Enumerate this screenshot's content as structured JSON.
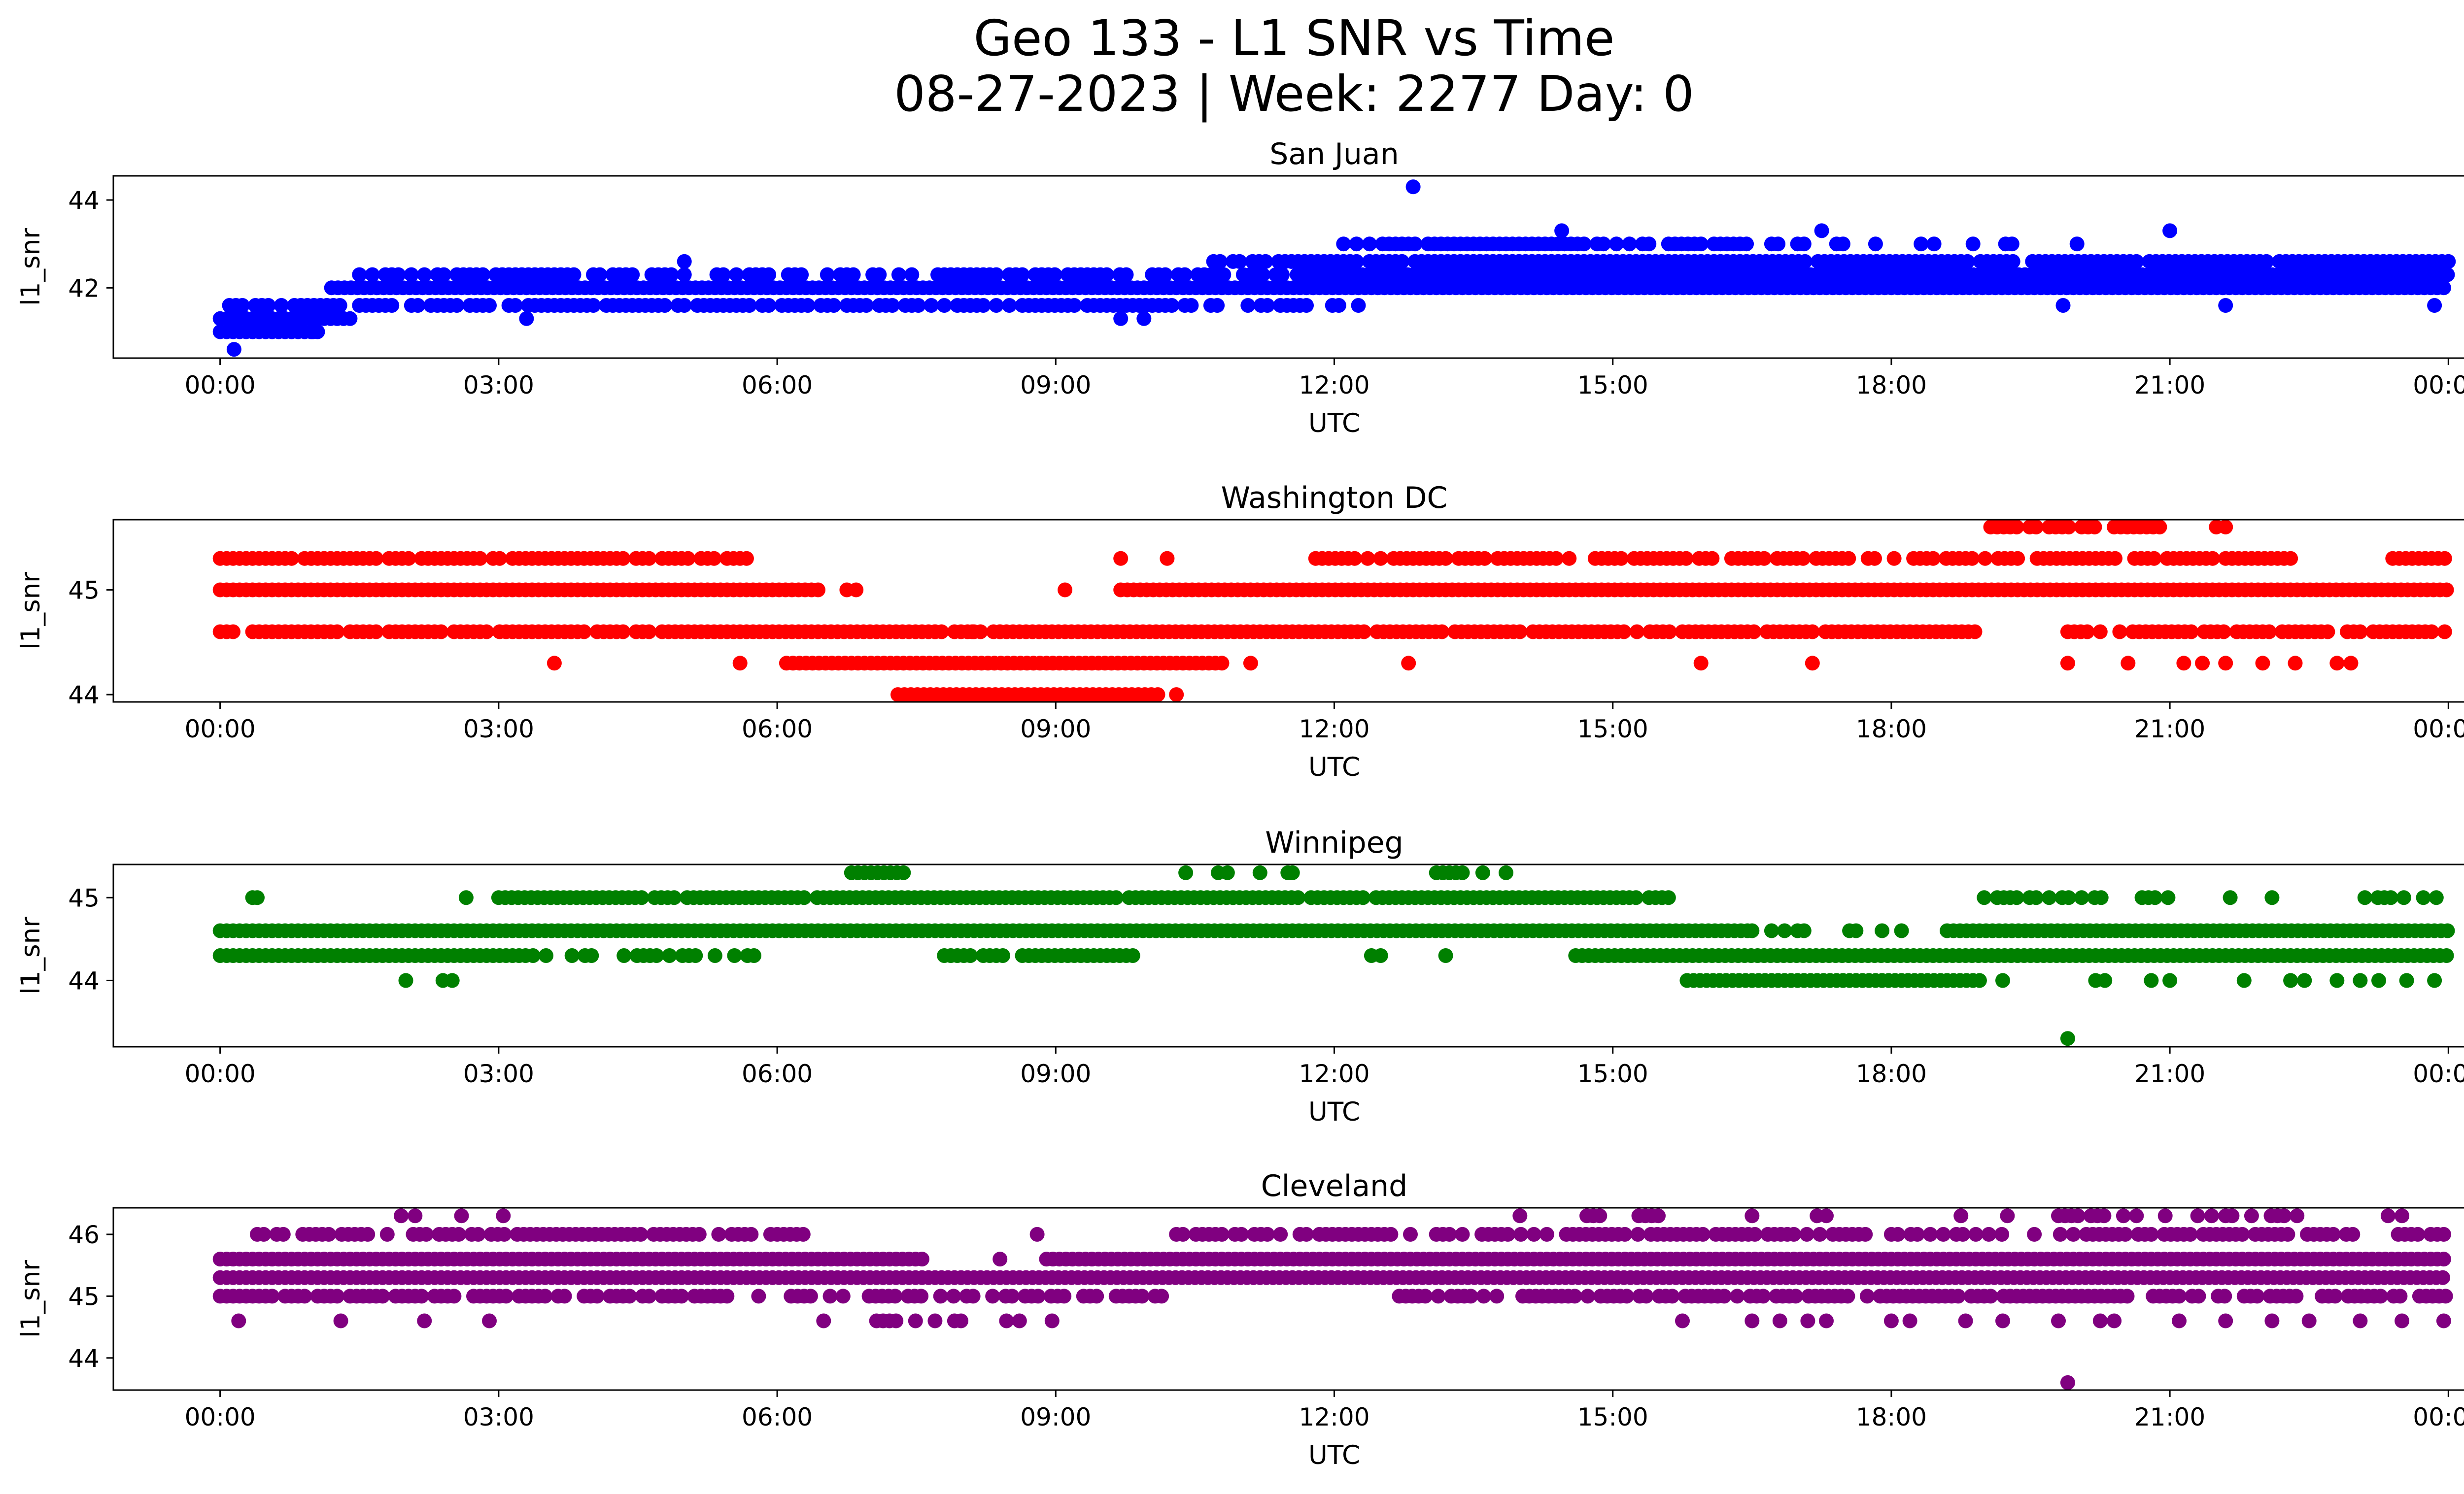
{
  "chart_data": {
    "type": "scatter",
    "title": "Geo 133 - L1 SNR vs Time",
    "subtitle": "08-27-2023 | Week: 2277 Day: 0",
    "x_tick_labels": [
      "00:00",
      "03:00",
      "06:00",
      "09:00",
      "12:00",
      "15:00",
      "18:00",
      "21:00",
      "00:00"
    ],
    "x_tick_hours": [
      0,
      3,
      6,
      9,
      12,
      15,
      18,
      21,
      24
    ],
    "xlim_hours": [
      -1.15,
      25.15
    ],
    "xlabel": "UTC",
    "ylabel": "l1_snr",
    "grid": false,
    "panels": [
      {
        "name": "San Juan",
        "color": "#0000ff",
        "ylim": [
          40.4,
          44.55
        ],
        "yticks": [
          42,
          44
        ],
        "bands": [
          {
            "y": 41.0,
            "start": 0.0,
            "end": 1.1,
            "density": 1.0
          },
          {
            "y": 41.3,
            "start": 0.0,
            "end": 1.4,
            "density": 1.0
          },
          {
            "y": 41.6,
            "start": 0.1,
            "end": 10.8,
            "density": 0.8
          },
          {
            "y": 41.6,
            "start": 11.0,
            "end": 12.3,
            "density": 0.4
          },
          {
            "y": 42.0,
            "start": 1.2,
            "end": 24.0,
            "density": 1.0
          },
          {
            "y": 42.3,
            "start": 1.5,
            "end": 11.5,
            "density": 0.7
          },
          {
            "y": 42.3,
            "start": 11.6,
            "end": 24.0,
            "density": 1.0
          },
          {
            "y": 42.6,
            "start": 10.7,
            "end": 24.0,
            "density": 0.95
          },
          {
            "y": 43.0,
            "start": 12.1,
            "end": 16.5,
            "density": 0.85
          },
          {
            "y": 43.0,
            "start": 16.5,
            "end": 20.0,
            "density": 0.35
          },
          {
            "y": 43.0,
            "start": 20.5,
            "end": 20.7,
            "density": 0.4
          }
        ],
        "points": [
          {
            "x": 0.15,
            "y": 40.6
          },
          {
            "x": 12.85,
            "y": 44.3
          },
          {
            "x": 14.45,
            "y": 43.3
          },
          {
            "x": 17.25,
            "y": 43.3
          },
          {
            "x": 21.0,
            "y": 43.3
          },
          {
            "x": 5.0,
            "y": 42.6
          },
          {
            "x": 3.3,
            "y": 41.3
          },
          {
            "x": 9.7,
            "y": 41.3
          },
          {
            "x": 9.95,
            "y": 41.3
          },
          {
            "x": 19.85,
            "y": 41.6
          },
          {
            "x": 23.85,
            "y": 41.6
          },
          {
            "x": 21.6,
            "y": 41.6
          },
          {
            "x": 1.0,
            "y": 41.0
          },
          {
            "x": 1.05,
            "y": 41.3
          }
        ]
      },
      {
        "name": "Washington DC",
        "color": "#ff0000",
        "ylim": [
          43.93,
          45.67
        ],
        "yticks": [
          44,
          45
        ],
        "bands": [
          {
            "y": 44.0,
            "start": 7.3,
            "end": 10.1,
            "density": 1.0
          },
          {
            "y": 44.3,
            "start": 6.1,
            "end": 10.8,
            "density": 1.0
          },
          {
            "y": 44.6,
            "start": 0.0,
            "end": 18.9,
            "density": 0.9
          },
          {
            "y": 44.6,
            "start": 19.9,
            "end": 24.0,
            "density": 0.9
          },
          {
            "y": 45.0,
            "start": 0.0,
            "end": 6.5,
            "density": 1.0
          },
          {
            "y": 45.0,
            "start": 9.7,
            "end": 24.0,
            "density": 1.0
          },
          {
            "y": 45.3,
            "start": 0.0,
            "end": 5.8,
            "density": 0.85
          },
          {
            "y": 45.3,
            "start": 11.8,
            "end": 22.4,
            "density": 0.8
          },
          {
            "y": 45.3,
            "start": 23.4,
            "end": 24.0,
            "density": 1.0
          },
          {
            "y": 45.6,
            "start": 19.0,
            "end": 20.9,
            "density": 0.8
          }
        ],
        "points": [
          {
            "x": 3.6,
            "y": 44.3
          },
          {
            "x": 5.6,
            "y": 44.3
          },
          {
            "x": 11.1,
            "y": 44.3
          },
          {
            "x": 12.8,
            "y": 44.3
          },
          {
            "x": 15.95,
            "y": 44.3
          },
          {
            "x": 17.15,
            "y": 44.3
          },
          {
            "x": 19.9,
            "y": 44.3
          },
          {
            "x": 20.55,
            "y": 44.3
          },
          {
            "x": 21.15,
            "y": 44.3
          },
          {
            "x": 21.35,
            "y": 44.3
          },
          {
            "x": 21.6,
            "y": 44.3
          },
          {
            "x": 22.0,
            "y": 44.3
          },
          {
            "x": 22.35,
            "y": 44.3
          },
          {
            "x": 22.8,
            "y": 44.3
          },
          {
            "x": 22.95,
            "y": 44.3
          },
          {
            "x": 6.75,
            "y": 45.0
          },
          {
            "x": 6.85,
            "y": 45.0
          },
          {
            "x": 9.1,
            "y": 45.0
          },
          {
            "x": 9.7,
            "y": 45.3
          },
          {
            "x": 10.2,
            "y": 45.3
          },
          {
            "x": 10.3,
            "y": 44.0
          },
          {
            "x": 21.5,
            "y": 45.6
          },
          {
            "x": 21.6,
            "y": 45.6
          },
          {
            "x": 7.7,
            "y": 44.6
          },
          {
            "x": 8.1,
            "y": 44.6
          },
          {
            "x": 8.4,
            "y": 44.6
          }
        ]
      },
      {
        "name": "Winnipeg",
        "color": "#008000",
        "ylim": [
          43.2,
          45.4
        ],
        "yticks": [
          44,
          45
        ],
        "bands": [
          {
            "y": 44.3,
            "start": 0.0,
            "end": 3.3,
            "density": 1.0
          },
          {
            "y": 44.3,
            "start": 3.3,
            "end": 5.8,
            "density": 0.45
          },
          {
            "y": 44.3,
            "start": 7.8,
            "end": 9.9,
            "density": 0.8
          },
          {
            "y": 44.3,
            "start": 14.6,
            "end": 24.0,
            "density": 1.0
          },
          {
            "y": 44.6,
            "start": 0.0,
            "end": 16.5,
            "density": 1.0
          },
          {
            "y": 44.6,
            "start": 16.5,
            "end": 18.6,
            "density": 0.3
          },
          {
            "y": 44.6,
            "start": 18.6,
            "end": 24.0,
            "density": 1.0
          },
          {
            "y": 45.0,
            "start": 3.0,
            "end": 15.6,
            "density": 0.95
          },
          {
            "y": 45.0,
            "start": 19.0,
            "end": 20.3,
            "density": 0.6
          },
          {
            "y": 45.0,
            "start": 20.7,
            "end": 21.0,
            "density": 0.8
          },
          {
            "y": 45.0,
            "start": 23.1,
            "end": 24.0,
            "density": 0.7
          },
          {
            "y": 44.0,
            "start": 15.8,
            "end": 19.0,
            "density": 1.0
          },
          {
            "y": 45.3,
            "start": 6.8,
            "end": 7.4,
            "density": 1.0
          },
          {
            "y": 45.3,
            "start": 13.1,
            "end": 13.4,
            "density": 1.0
          }
        ],
        "points": [
          {
            "x": 0.35,
            "y": 45.0
          },
          {
            "x": 0.4,
            "y": 45.0
          },
          {
            "x": 2.65,
            "y": 45.0
          },
          {
            "x": 2.0,
            "y": 44.0
          },
          {
            "x": 2.4,
            "y": 44.0
          },
          {
            "x": 2.5,
            "y": 44.0
          },
          {
            "x": 19.9,
            "y": 43.3
          },
          {
            "x": 12.4,
            "y": 44.3
          },
          {
            "x": 12.5,
            "y": 44.3
          },
          {
            "x": 13.2,
            "y": 44.3
          },
          {
            "x": 10.4,
            "y": 45.3
          },
          {
            "x": 10.75,
            "y": 45.3
          },
          {
            "x": 10.85,
            "y": 45.3
          },
          {
            "x": 11.2,
            "y": 45.3
          },
          {
            "x": 11.5,
            "y": 45.3
          },
          {
            "x": 11.55,
            "y": 45.3
          },
          {
            "x": 13.6,
            "y": 45.3
          },
          {
            "x": 13.85,
            "y": 45.3
          },
          {
            "x": 21.65,
            "y": 45.0
          },
          {
            "x": 22.1,
            "y": 45.0
          },
          {
            "x": 19.2,
            "y": 44.0
          },
          {
            "x": 20.2,
            "y": 44.0
          },
          {
            "x": 20.3,
            "y": 44.0
          },
          {
            "x": 20.8,
            "y": 44.0
          },
          {
            "x": 21.0,
            "y": 44.0
          },
          {
            "x": 21.8,
            "y": 44.0
          },
          {
            "x": 22.3,
            "y": 44.0
          },
          {
            "x": 22.45,
            "y": 44.0
          },
          {
            "x": 22.8,
            "y": 44.0
          },
          {
            "x": 23.05,
            "y": 44.0
          },
          {
            "x": 23.25,
            "y": 44.0
          },
          {
            "x": 23.55,
            "y": 44.0
          },
          {
            "x": 23.85,
            "y": 44.0
          }
        ]
      },
      {
        "name": "Cleveland",
        "color": "#800080",
        "ylim": [
          43.48,
          46.43
        ],
        "yticks": [
          44,
          45,
          46
        ],
        "bands": [
          {
            "y": 45.0,
            "start": 0.0,
            "end": 5.5,
            "density": 0.8
          },
          {
            "y": 45.0,
            "start": 5.8,
            "end": 10.2,
            "density": 0.6
          },
          {
            "y": 45.0,
            "start": 12.7,
            "end": 24.0,
            "density": 0.75
          },
          {
            "y": 45.3,
            "start": 0.0,
            "end": 24.0,
            "density": 1.0
          },
          {
            "y": 45.6,
            "start": 0.0,
            "end": 7.6,
            "density": 1.0
          },
          {
            "y": 45.6,
            "start": 8.9,
            "end": 24.0,
            "density": 1.0
          },
          {
            "y": 46.0,
            "start": 0.4,
            "end": 6.4,
            "density": 0.8
          },
          {
            "y": 46.0,
            "start": 10.3,
            "end": 24.0,
            "density": 0.7
          },
          {
            "y": 46.3,
            "start": 14.3,
            "end": 15.7,
            "density": 0.4
          },
          {
            "y": 46.3,
            "start": 19.8,
            "end": 20.7,
            "density": 0.5
          },
          {
            "y": 46.3,
            "start": 21.6,
            "end": 22.5,
            "density": 0.4
          },
          {
            "y": 44.6,
            "start": 7.0,
            "end": 9.0,
            "density": 0.45
          }
        ],
        "points": [
          {
            "x": 0.2,
            "y": 44.6
          },
          {
            "x": 1.3,
            "y": 44.6
          },
          {
            "x": 2.2,
            "y": 44.6
          },
          {
            "x": 2.9,
            "y": 44.6
          },
          {
            "x": 6.5,
            "y": 44.6
          },
          {
            "x": 15.75,
            "y": 44.6
          },
          {
            "x": 16.5,
            "y": 44.6
          },
          {
            "x": 16.8,
            "y": 44.6
          },
          {
            "x": 17.1,
            "y": 44.6
          },
          {
            "x": 17.3,
            "y": 44.6
          },
          {
            "x": 18.0,
            "y": 44.6
          },
          {
            "x": 18.2,
            "y": 44.6
          },
          {
            "x": 18.8,
            "y": 44.6
          },
          {
            "x": 19.2,
            "y": 44.6
          },
          {
            "x": 19.8,
            "y": 44.6
          },
          {
            "x": 20.25,
            "y": 44.6
          },
          {
            "x": 20.4,
            "y": 44.6
          },
          {
            "x": 21.1,
            "y": 44.6
          },
          {
            "x": 21.6,
            "y": 44.6
          },
          {
            "x": 22.1,
            "y": 44.6
          },
          {
            "x": 22.5,
            "y": 44.6
          },
          {
            "x": 23.05,
            "y": 44.6
          },
          {
            "x": 23.5,
            "y": 44.6
          },
          {
            "x": 23.95,
            "y": 44.6
          },
          {
            "x": 19.9,
            "y": 43.6
          },
          {
            "x": 1.95,
            "y": 46.3
          },
          {
            "x": 2.1,
            "y": 46.3
          },
          {
            "x": 2.6,
            "y": 46.3
          },
          {
            "x": 3.05,
            "y": 46.3
          },
          {
            "x": 14.0,
            "y": 46.3
          },
          {
            "x": 16.5,
            "y": 46.3
          },
          {
            "x": 17.2,
            "y": 46.3
          },
          {
            "x": 17.3,
            "y": 46.3
          },
          {
            "x": 18.75,
            "y": 46.3
          },
          {
            "x": 19.25,
            "y": 46.3
          },
          {
            "x": 20.95,
            "y": 46.3
          },
          {
            "x": 21.3,
            "y": 46.3
          },
          {
            "x": 21.45,
            "y": 46.3
          },
          {
            "x": 23.35,
            "y": 46.3
          },
          {
            "x": 23.5,
            "y": 46.3
          },
          {
            "x": 8.4,
            "y": 45.6
          },
          {
            "x": 8.8,
            "y": 46.0
          }
        ]
      }
    ]
  }
}
